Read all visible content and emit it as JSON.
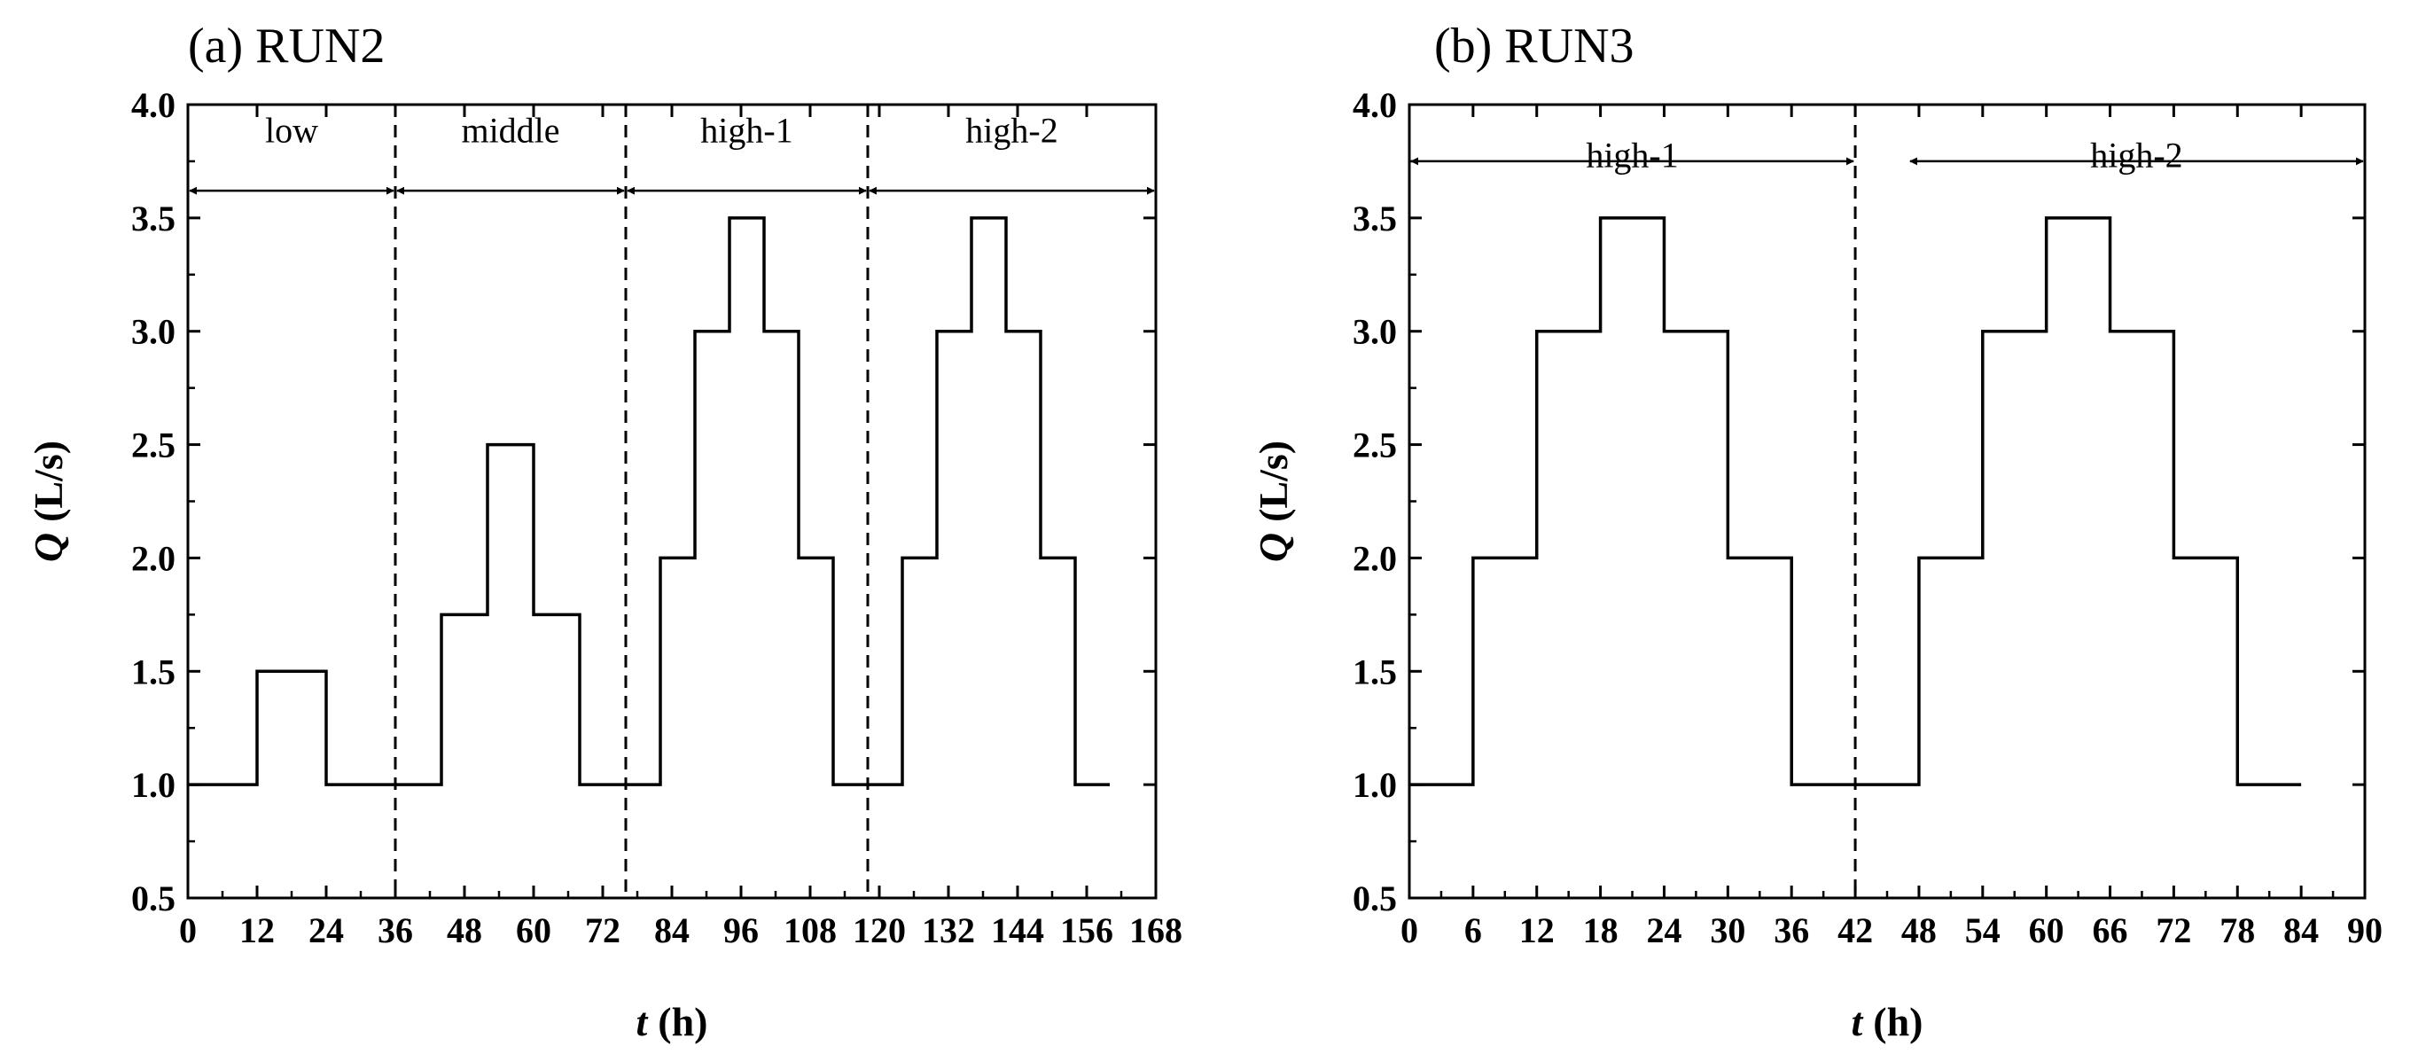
{
  "chart_data": [
    {
      "type": "line",
      "step": true,
      "title": "(a) RUN2",
      "xlabel": {
        "variable": "t",
        "unit": "(h)"
      },
      "ylabel": {
        "variable": "Q",
        "unit": "(L/s)"
      },
      "xlim": [
        0,
        168
      ],
      "ylim": [
        0.5,
        4.0
      ],
      "xticks": [
        0,
        12,
        24,
        36,
        48,
        60,
        72,
        84,
        96,
        108,
        120,
        132,
        144,
        156,
        168
      ],
      "yticks": [
        0.5,
        1.0,
        1.5,
        2.0,
        2.5,
        3.0,
        3.5,
        4.0
      ],
      "grid": false,
      "color": "#000000",
      "series": [
        {
          "steps": [
            [
              0,
              12,
              1.0
            ],
            [
              12,
              24,
              1.5
            ],
            [
              24,
              44,
              1.0
            ],
            [
              44,
              52,
              1.75
            ],
            [
              52,
              60,
              2.5
            ],
            [
              60,
              68,
              1.75
            ],
            [
              68,
              82,
              1.0
            ],
            [
              82,
              88,
              2.0
            ],
            [
              88,
              94,
              3.0
            ],
            [
              94,
              100,
              3.5
            ],
            [
              100,
              106,
              3.0
            ],
            [
              106,
              112,
              2.0
            ],
            [
              112,
              124,
              1.0
            ],
            [
              124,
              130,
              2.0
            ],
            [
              130,
              136,
              3.0
            ],
            [
              136,
              142,
              3.5
            ],
            [
              142,
              148,
              3.0
            ],
            [
              148,
              154,
              2.0
            ],
            [
              154,
              160,
              1.0
            ]
          ]
        }
      ],
      "dividers": [
        36,
        76,
        118
      ],
      "regions": [
        {
          "label": "low",
          "x0": 0,
          "x1": 36,
          "arrow_y": 3.62,
          "label_y": 3.99
        },
        {
          "label": "middle",
          "x0": 36,
          "x1": 76,
          "arrow_y": 3.62,
          "label_y": 3.99
        },
        {
          "label": "high-1",
          "x0": 76,
          "x1": 118,
          "arrow_y": 3.62,
          "label_y": 3.99
        },
        {
          "label": "high-2",
          "x0": 118,
          "x1": 168,
          "arrow_y": 3.62,
          "label_y": 3.99
        }
      ]
    },
    {
      "type": "line",
      "step": true,
      "title": "(b) RUN3",
      "xlabel": {
        "variable": "t",
        "unit": "(h)"
      },
      "ylabel": {
        "variable": "Q",
        "unit": "(L/s)"
      },
      "xlim": [
        0,
        90
      ],
      "ylim": [
        0.5,
        4.0
      ],
      "xticks": [
        0,
        6,
        12,
        18,
        24,
        30,
        36,
        42,
        48,
        54,
        60,
        66,
        72,
        78,
        84,
        90
      ],
      "yticks": [
        0.5,
        1.0,
        1.5,
        2.0,
        2.5,
        3.0,
        3.5,
        4.0
      ],
      "grid": false,
      "color": "#000000",
      "series": [
        {
          "steps": [
            [
              0,
              6,
              1.0
            ],
            [
              6,
              12,
              2.0
            ],
            [
              12,
              18,
              3.0
            ],
            [
              18,
              24,
              3.5
            ],
            [
              24,
              30,
              3.0
            ],
            [
              30,
              36,
              2.0
            ],
            [
              36,
              48,
              1.0
            ],
            [
              48,
              54,
              2.0
            ],
            [
              54,
              60,
              3.0
            ],
            [
              60,
              66,
              3.5
            ],
            [
              66,
              72,
              3.0
            ],
            [
              72,
              78,
              2.0
            ],
            [
              78,
              84,
              1.0
            ]
          ]
        }
      ],
      "dividers": [
        42
      ],
      "regions": [
        {
          "label": "high-1",
          "x0": 0,
          "x1": 42,
          "arrow_y": 3.75,
          "label_y": 3.88
        },
        {
          "label": "high-2",
          "x0": 47,
          "x1": 90,
          "arrow_y": 3.75,
          "label_y": 3.88
        }
      ]
    }
  ]
}
